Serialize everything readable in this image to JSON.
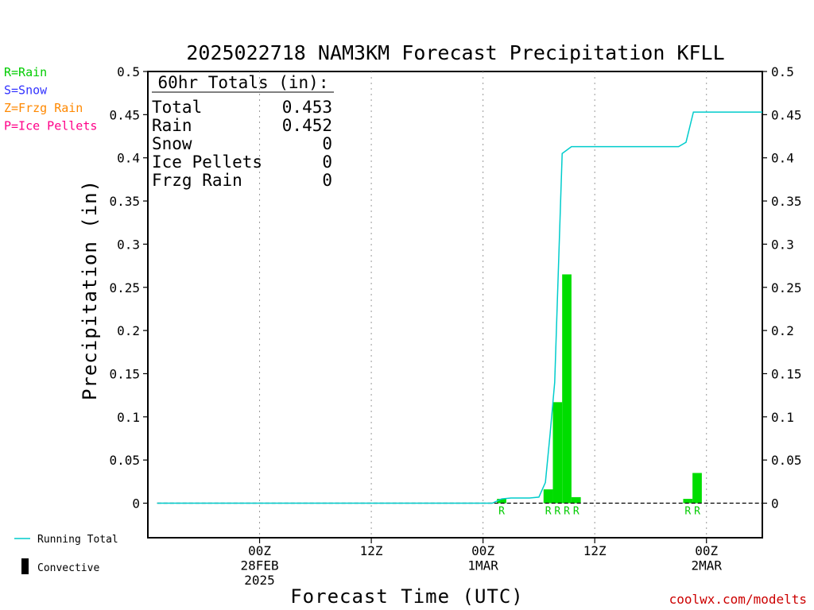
{
  "chart_data": {
    "type": "bar",
    "title": "2025022718 NAM3KM Forecast Precipitation KFLL",
    "xlabel": "Forecast Time (UTC)",
    "ylabel": "Precipitation (in)",
    "ylim": [
      -0.04,
      0.5
    ],
    "y_ticks": [
      "0.5",
      "0.45",
      "0.4",
      "0.35",
      "0.3",
      "0.25",
      "0.2",
      "0.15",
      "0.1",
      "0.05",
      "0"
    ],
    "x_range_hours": [
      -6,
      60
    ],
    "x_ticks": [
      {
        "hour": 6,
        "lines": [
          "00Z",
          "28FEB",
          "2025"
        ]
      },
      {
        "hour": 18,
        "lines": [
          "12Z"
        ]
      },
      {
        "hour": 30,
        "lines": [
          "00Z",
          "1MAR"
        ]
      },
      {
        "hour": 42,
        "lines": [
          "12Z"
        ]
      },
      {
        "hour": 54,
        "lines": [
          "00Z",
          "2MAR"
        ]
      }
    ],
    "grid": "vertical dotted",
    "bars": [
      {
        "hour": 32,
        "value": 0.005,
        "type": "R"
      },
      {
        "hour": 37,
        "value": 0.016,
        "type": "R"
      },
      {
        "hour": 38,
        "value": 0.117,
        "type": "R"
      },
      {
        "hour": 39,
        "value": 0.265,
        "type": "R"
      },
      {
        "hour": 40,
        "value": 0.007,
        "type": "R"
      },
      {
        "hour": 52,
        "value": 0.005,
        "type": "R"
      },
      {
        "hour": 53,
        "value": 0.035,
        "type": "R"
      }
    ],
    "running_total": [
      [
        -5,
        0
      ],
      [
        30,
        0
      ],
      [
        31,
        0
      ],
      [
        32,
        0.005
      ],
      [
        33,
        0.006
      ],
      [
        34,
        0.006
      ],
      [
        35,
        0.006
      ],
      [
        36,
        0.007
      ],
      [
        36.7,
        0.024
      ],
      [
        37.2,
        0.08
      ],
      [
        37.7,
        0.14
      ],
      [
        38.5,
        0.405
      ],
      [
        39.5,
        0.413
      ],
      [
        45,
        0.413
      ],
      [
        50,
        0.413
      ],
      [
        51,
        0.413
      ],
      [
        51.8,
        0.418
      ],
      [
        52.6,
        0.453
      ],
      [
        60,
        0.453
      ]
    ],
    "totals_box": {
      "heading": "60hr Totals (in):",
      "rows": [
        {
          "label": "Total",
          "value": "0.453"
        },
        {
          "label": "Rain",
          "value": "0.452"
        },
        {
          "label": "Snow",
          "value": "0"
        },
        {
          "label": "Ice Pellets",
          "value": "0"
        },
        {
          "label": "Frzg Rain",
          "value": "0"
        }
      ]
    },
    "legend": [
      {
        "text": "R=Rain",
        "color": "#00cc00"
      },
      {
        "text": "S=Snow",
        "color": "#3333ff"
      },
      {
        "text": "Z=Frzg Rain",
        "color": "#ff8800"
      },
      {
        "text": "P=Ice Pellets",
        "color": "#ff0088"
      }
    ],
    "bottom_legend": {
      "running_total": "Running Total",
      "convective": "Convective"
    },
    "colors": {
      "bar": "#00dd00",
      "line": "#00cccc",
      "zero_line": "#000000"
    }
  },
  "footer": "coolwx.com/modelts"
}
